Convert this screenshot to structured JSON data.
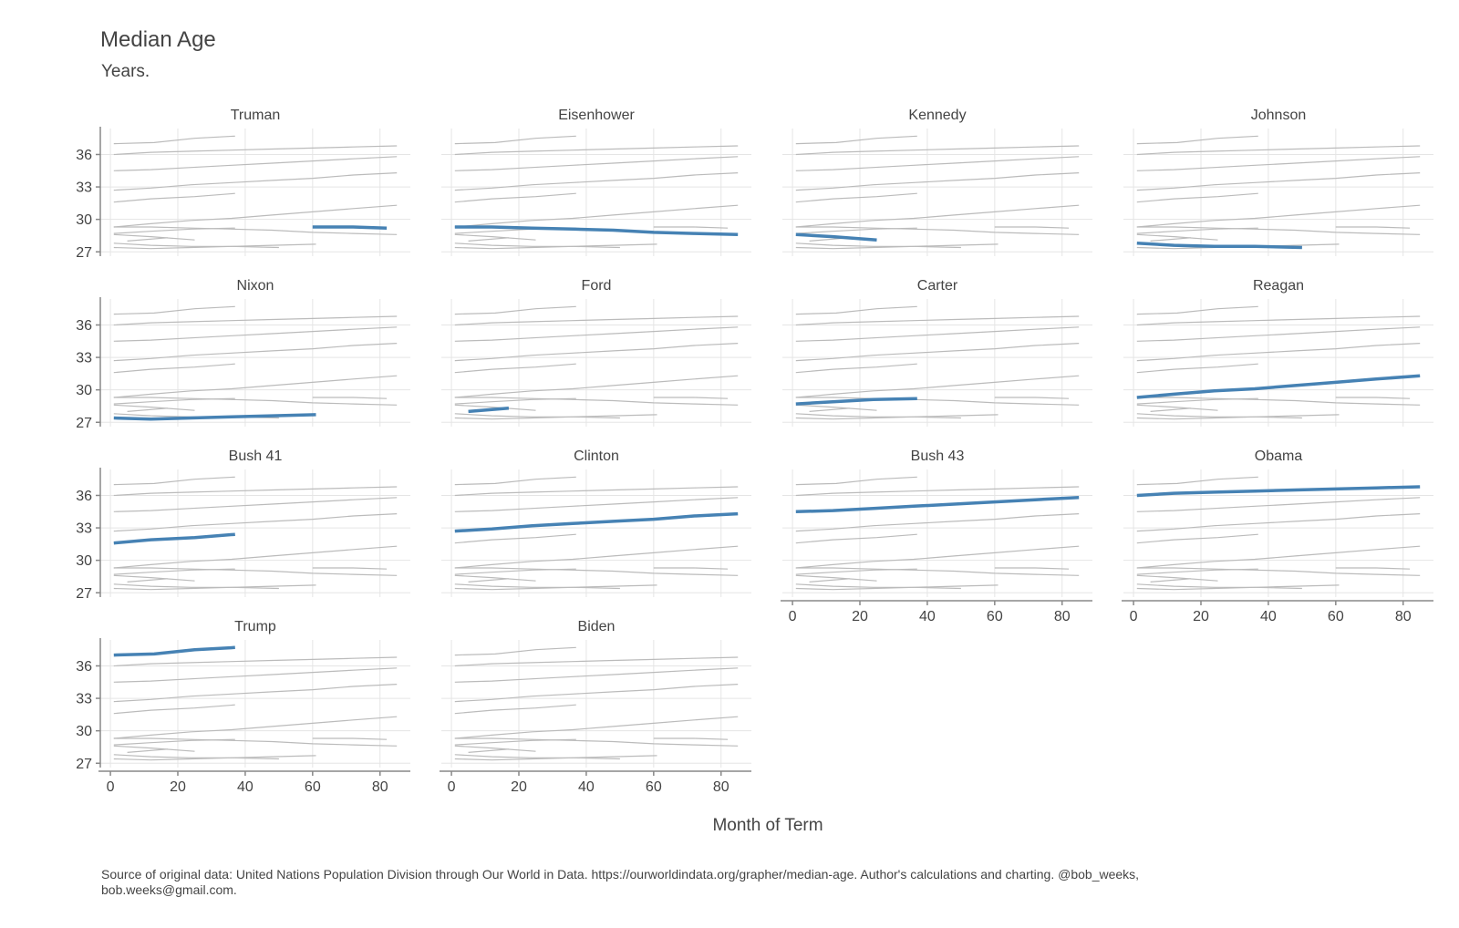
{
  "title": "Median Age",
  "subtitle": "Years.",
  "caption": "Source of original data: United Nations Population Division through Our World in Data. https://ourworldindata.org/grapher/median-age. Author's calculations and charting. @bob_weeks, bob.weeks@gmail.com.",
  "colors": {
    "highlight": "#4682b4",
    "background_lines": "#bbbbbb",
    "grid": "#e5e5e5",
    "axis": "#888888",
    "text": "#444444"
  },
  "chart_data": {
    "type": "line",
    "layout": "small-multiples",
    "xlabel": "Month of Term",
    "ylabel": "",
    "xlim": [
      -3,
      89
    ],
    "ylim": [
      26.6,
      38.4
    ],
    "xticks": [
      0,
      20,
      40,
      60,
      80
    ],
    "yticks": [
      27,
      30,
      33,
      36
    ],
    "grid": true,
    "legend": "none",
    "panels": [
      {
        "title": "Truman",
        "x": [
          60,
          72,
          82
        ],
        "y": [
          29.3,
          29.3,
          29.2
        ]
      },
      {
        "title": "Eisenhower",
        "x": [
          1,
          12,
          24,
          36,
          48,
          60,
          72,
          85
        ],
        "y": [
          29.3,
          29.3,
          29.2,
          29.1,
          29.0,
          28.8,
          28.7,
          28.6
        ]
      },
      {
        "title": "Kennedy",
        "x": [
          1,
          12,
          25
        ],
        "y": [
          28.6,
          28.4,
          28.1
        ]
      },
      {
        "title": "Johnson",
        "x": [
          1,
          12,
          24,
          36,
          50
        ],
        "y": [
          27.8,
          27.6,
          27.5,
          27.5,
          27.4
        ]
      },
      {
        "title": "Nixon",
        "x": [
          1,
          12,
          24,
          36,
          48,
          61
        ],
        "y": [
          27.4,
          27.3,
          27.4,
          27.5,
          27.6,
          27.7
        ]
      },
      {
        "title": "Ford",
        "x": [
          5,
          17
        ],
        "y": [
          28.0,
          28.3
        ]
      },
      {
        "title": "Carter",
        "x": [
          1,
          12,
          24,
          37
        ],
        "y": [
          28.7,
          28.9,
          29.1,
          29.2
        ]
      },
      {
        "title": "Reagan",
        "x": [
          1,
          12,
          24,
          36,
          48,
          60,
          72,
          85
        ],
        "y": [
          29.3,
          29.6,
          29.9,
          30.1,
          30.4,
          30.7,
          31.0,
          31.3
        ]
      },
      {
        "title": "Bush 41",
        "x": [
          1,
          12,
          25,
          37
        ],
        "y": [
          31.6,
          31.9,
          32.1,
          32.4
        ]
      },
      {
        "title": "Clinton",
        "x": [
          1,
          12,
          24,
          36,
          48,
          60,
          72,
          85
        ],
        "y": [
          32.7,
          32.9,
          33.2,
          33.4,
          33.6,
          33.8,
          34.1,
          34.3
        ]
      },
      {
        "title": "Bush 43",
        "x": [
          1,
          12,
          24,
          36,
          48,
          60,
          72,
          85
        ],
        "y": [
          34.5,
          34.6,
          34.8,
          35.0,
          35.2,
          35.4,
          35.6,
          35.8
        ]
      },
      {
        "title": "Obama",
        "x": [
          1,
          12,
          24,
          36,
          48,
          60,
          72,
          85
        ],
        "y": [
          36.0,
          36.2,
          36.3,
          36.4,
          36.5,
          36.6,
          36.7,
          36.8
        ]
      },
      {
        "title": "Trump",
        "x": [
          1,
          13,
          25,
          37
        ],
        "y": [
          37.0,
          37.1,
          37.5,
          37.7
        ]
      },
      {
        "title": "Biden",
        "x": [],
        "y": []
      }
    ]
  }
}
